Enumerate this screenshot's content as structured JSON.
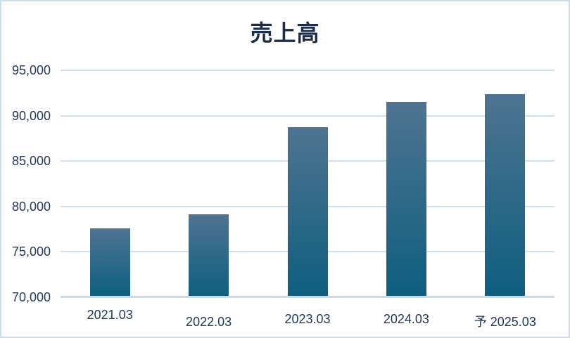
{
  "chart_data": {
    "type": "bar",
    "title": "売上高",
    "categories": [
      "2021.03",
      "2022.03",
      "2023.03",
      "2024.03",
      "予 2025.03"
    ],
    "values": [
      77600,
      79100,
      88700,
      91500,
      92400
    ],
    "ylim": [
      70000,
      95000
    ],
    "ytick_step": 5000,
    "ytick_labels": [
      "95,000",
      "90,000",
      "85,000",
      "80,000",
      "75,000",
      "70,000"
    ],
    "xlabel": "",
    "ylabel": "",
    "grid": true,
    "legend": "none"
  },
  "colors": {
    "background": "#ffffff",
    "frame_border": "#c8dcf2",
    "title_text": "#1b2d4a",
    "axis_text": "#20395c",
    "gridline": "#cfe0f2",
    "axis_line": "#c6daf0",
    "bar_gradient_top": "#4e7491",
    "bar_gradient_bottom": "#0e5e7f"
  }
}
